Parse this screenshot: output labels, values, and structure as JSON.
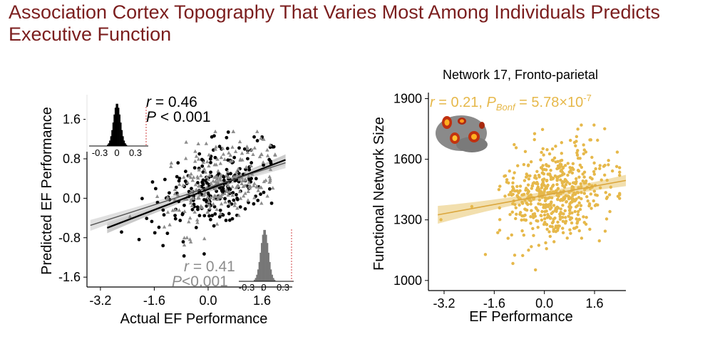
{
  "slide": {
    "title": "Association Cortex Topography That Varies Most Among Individuals Predicts Executive Function"
  },
  "colors": {
    "title": "#7b1e1e",
    "black_series": "#000000",
    "gray_series": "#8c8c8c",
    "yellow_series": "#e6b84a",
    "yellow_band": "#f0d9a0"
  },
  "chart_data": [
    {
      "type": "scatter",
      "title": "",
      "xlabel": "Actual EF Performance",
      "ylabel": "Predicted EF Performance",
      "xlim": [
        -3.6,
        2.5
      ],
      "ylim": [
        -1.8,
        2.1
      ],
      "xticks": [
        "-3.2",
        "-1.6",
        "0.0",
        "1.6"
      ],
      "yticks": [
        "-1.6",
        "-0.8",
        "0.0",
        "0.8",
        "1.6"
      ],
      "grid": false,
      "series": [
        {
          "color": "#000000",
          "marker": "circle",
          "fit": {
            "x": [
              -3.0,
              2.3
            ],
            "y": [
              -0.6,
              0.78
            ]
          },
          "annotation": {
            "r_label": "r",
            "r_value": " = 0.46",
            "p_label": "P",
            "p_value": " < 0.001"
          },
          "null_distribution": {
            "x_ticks": [
              "-0.3",
              "0",
              "0.3"
            ],
            "observed": 0.46
          }
        },
        {
          "color": "#8c8c8c",
          "marker": "triangle",
          "fit": {
            "x": [
              -3.5,
              2.3
            ],
            "y": [
              -0.55,
              0.72
            ]
          },
          "annotation": {
            "r_label": "r",
            "r_value": " = 0.41",
            "p_label": "P",
            "p_value": "<0.001"
          },
          "null_distribution": {
            "x_ticks": [
              "-0.3",
              "0",
              "0.3"
            ],
            "observed": 0.41
          }
        }
      ]
    },
    {
      "type": "scatter",
      "title": "Network 17, Fronto-parietal",
      "xlabel": "EF Performance",
      "ylabel": "Functional Network Size",
      "xlim": [
        -3.7,
        2.6
      ],
      "ylim": [
        950,
        1930
      ],
      "xticks": [
        "-3.2",
        "-1.6",
        "0.0",
        "1.6"
      ],
      "yticks": [
        "1000",
        "1300",
        "1600",
        "1900"
      ],
      "grid": false,
      "series": [
        {
          "color": "#e6b84a",
          "marker": "circle",
          "fit": {
            "x": [
              -3.4,
              2.6
            ],
            "y": [
              1325,
              1495
            ]
          },
          "annotation": {
            "r_label": "r",
            "r_value": " = 0.21, ",
            "p_label": "P",
            "p_sub": "Bonf",
            "p_value": " = 5.78×10",
            "p_exp": "-7"
          }
        }
      ]
    }
  ]
}
